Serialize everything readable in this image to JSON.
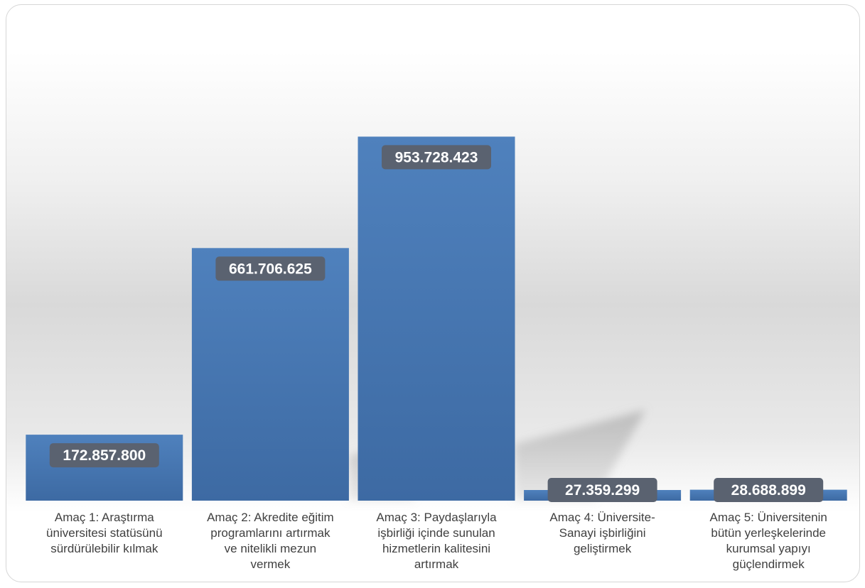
{
  "chart_data": {
    "type": "bar",
    "categories": [
      "Amaç 1: Araştırma üniversitesi statüsünü sürdürülebilir kılmak",
      "Amaç 2: Akredite eğitim programlarını artırmak ve nitelikli mezun vermek",
      "Amaç 3: Paydaşlarıyla işbirliği içinde sunulan hizmetlerin kalitesini artırmak",
      "Amaç 4: Üniversite-Sanayi işbirliğini geliştirmek",
      "Amaç 5: Üniversitenin bütün yerleşkelerinde kurumsal yapıyı güçlendirmek"
    ],
    "values": [
      172857800,
      661706625,
      953728423,
      27359299,
      28688899
    ],
    "value_labels": [
      "172.857.800",
      "661.706.625",
      "953.728.423",
      "27.359.299",
      "28.688.899"
    ],
    "title": "",
    "xlabel": "",
    "ylabel": "",
    "ylim": [
      0,
      1200000000
    ],
    "grid": false,
    "legend": "none",
    "colors": {
      "bar_top": "#4f81bd",
      "bar_bottom": "#3d6aa3",
      "label_bg": "#5a6270",
      "label_text": "#ffffff",
      "category_text": "#404040"
    }
  }
}
